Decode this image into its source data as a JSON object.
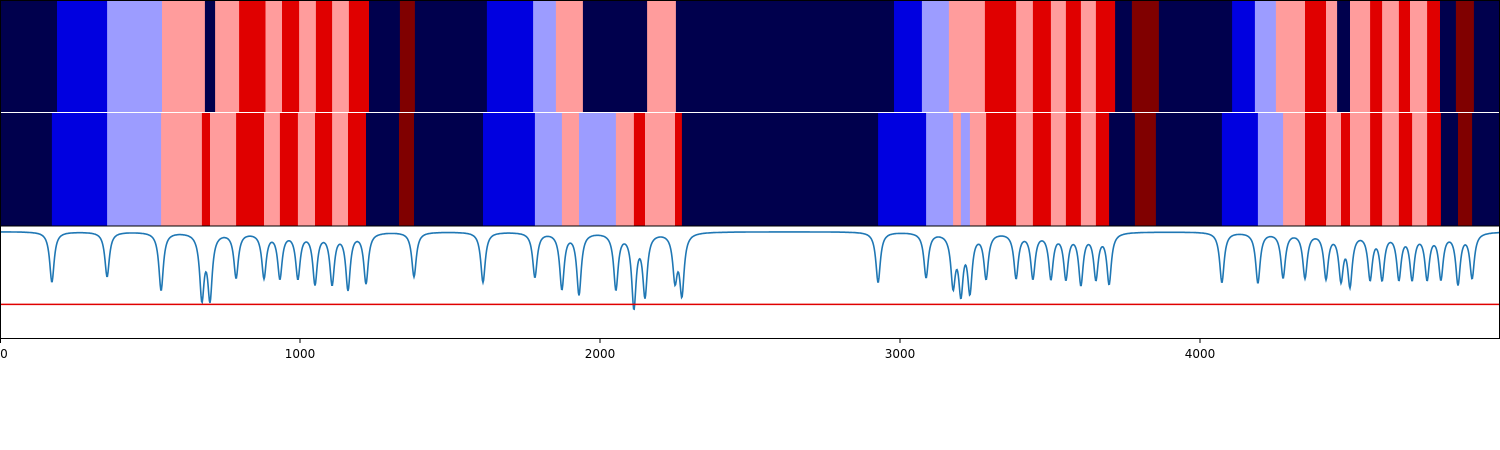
{
  "chart_data": {
    "type": "heatmap",
    "title": "",
    "xlabel": "",
    "ylabel": "",
    "xlim": [
      0,
      5000
    ],
    "xticks": [
      0,
      1000,
      2000,
      3000,
      4000
    ],
    "tick_labels": [
      "0",
      "1000",
      "2000",
      "3000",
      "4000"
    ],
    "grid": false,
    "legend": "none",
    "palette": {
      "0": "#00004d",
      "1": "#0000e0",
      "2": "#9c9cff",
      "3": "#ff9c9c",
      "4": "#e00000",
      "5": "#800000"
    },
    "rows": [
      {
        "name": "",
        "segments": [
          [
            0,
            190,
            0
          ],
          [
            190,
            357,
            1
          ],
          [
            357,
            540,
            2
          ],
          [
            540,
            683,
            3
          ],
          [
            683,
            717,
            0
          ],
          [
            717,
            797,
            3
          ],
          [
            797,
            885,
            4
          ],
          [
            885,
            940,
            3
          ],
          [
            940,
            997,
            4
          ],
          [
            997,
            1053,
            3
          ],
          [
            1053,
            1107,
            4
          ],
          [
            1107,
            1163,
            3
          ],
          [
            1163,
            1230,
            4
          ],
          [
            1230,
            1333,
            0
          ],
          [
            1333,
            1383,
            5
          ],
          [
            1383,
            1623,
            0
          ],
          [
            1623,
            1777,
            1
          ],
          [
            1777,
            1853,
            2
          ],
          [
            1853,
            1943,
            3
          ],
          [
            1943,
            2157,
            0
          ],
          [
            2157,
            2253,
            3
          ],
          [
            2253,
            2980,
            0
          ],
          [
            2980,
            3073,
            1
          ],
          [
            3073,
            3163,
            2
          ],
          [
            3163,
            3283,
            3
          ],
          [
            3283,
            3387,
            4
          ],
          [
            3387,
            3443,
            3
          ],
          [
            3443,
            3503,
            4
          ],
          [
            3503,
            3553,
            3
          ],
          [
            3553,
            3603,
            4
          ],
          [
            3603,
            3653,
            3
          ],
          [
            3653,
            3717,
            4
          ],
          [
            3717,
            3773,
            0
          ],
          [
            3773,
            3863,
            5
          ],
          [
            3863,
            4107,
            0
          ],
          [
            4107,
            4183,
            1
          ],
          [
            4183,
            4253,
            2
          ],
          [
            4253,
            4350,
            3
          ],
          [
            4350,
            4420,
            4
          ],
          [
            4420,
            4457,
            3
          ],
          [
            4457,
            4500,
            0
          ],
          [
            4500,
            4567,
            3
          ],
          [
            4567,
            4607,
            4
          ],
          [
            4607,
            4663,
            3
          ],
          [
            4663,
            4700,
            4
          ],
          [
            4700,
            4757,
            3
          ],
          [
            4757,
            4800,
            4
          ],
          [
            4800,
            4853,
            0
          ],
          [
            4853,
            4913,
            5
          ],
          [
            4913,
            5000,
            0
          ]
        ]
      },
      {
        "name": "",
        "segments": [
          [
            0,
            173,
            0
          ],
          [
            173,
            357,
            1
          ],
          [
            357,
            537,
            2
          ],
          [
            537,
            673,
            3
          ],
          [
            673,
            700,
            4
          ],
          [
            700,
            787,
            3
          ],
          [
            787,
            880,
            4
          ],
          [
            880,
            933,
            3
          ],
          [
            933,
            993,
            4
          ],
          [
            993,
            1050,
            3
          ],
          [
            1050,
            1107,
            4
          ],
          [
            1107,
            1160,
            3
          ],
          [
            1160,
            1220,
            4
          ],
          [
            1220,
            1330,
            0
          ],
          [
            1330,
            1380,
            5
          ],
          [
            1380,
            1610,
            0
          ],
          [
            1610,
            1783,
            1
          ],
          [
            1783,
            1873,
            2
          ],
          [
            1873,
            1930,
            3
          ],
          [
            1930,
            2053,
            2
          ],
          [
            2053,
            2113,
            3
          ],
          [
            2113,
            2150,
            4
          ],
          [
            2150,
            2250,
            3
          ],
          [
            2250,
            2273,
            4
          ],
          [
            2273,
            2927,
            0
          ],
          [
            2927,
            3087,
            1
          ],
          [
            3087,
            3177,
            2
          ],
          [
            3177,
            3203,
            3
          ],
          [
            3203,
            3233,
            2
          ],
          [
            3233,
            3287,
            3
          ],
          [
            3287,
            3387,
            4
          ],
          [
            3387,
            3443,
            3
          ],
          [
            3443,
            3503,
            4
          ],
          [
            3503,
            3553,
            3
          ],
          [
            3553,
            3603,
            4
          ],
          [
            3603,
            3653,
            3
          ],
          [
            3653,
            3697,
            4
          ],
          [
            3697,
            3783,
            0
          ],
          [
            3783,
            3853,
            5
          ],
          [
            3853,
            4073,
            0
          ],
          [
            4073,
            4193,
            1
          ],
          [
            4193,
            4277,
            2
          ],
          [
            4277,
            4350,
            3
          ],
          [
            4350,
            4420,
            4
          ],
          [
            4420,
            4470,
            3
          ],
          [
            4470,
            4500,
            4
          ],
          [
            4500,
            4567,
            3
          ],
          [
            4567,
            4607,
            4
          ],
          [
            4607,
            4663,
            3
          ],
          [
            4663,
            4707,
            4
          ],
          [
            4707,
            4757,
            3
          ],
          [
            4757,
            4803,
            4
          ],
          [
            4803,
            4860,
            0
          ],
          [
            4860,
            4907,
            5
          ],
          [
            4907,
            5000,
            0
          ]
        ]
      }
    ],
    "line_series": {
      "color": "#1f77b4",
      "threshold_color": "#e00000",
      "baseline": 0.95,
      "threshold": 0.3,
      "ylim": [
        0,
        1
      ],
      "dips": [
        [
          173,
          0.5
        ],
        [
          357,
          0.55
        ],
        [
          537,
          0.43
        ],
        [
          673,
          0.38
        ],
        [
          700,
          0.38
        ],
        [
          787,
          0.55
        ],
        [
          880,
          0.55
        ],
        [
          933,
          0.55
        ],
        [
          993,
          0.55
        ],
        [
          1050,
          0.5
        ],
        [
          1107,
          0.5
        ],
        [
          1160,
          0.45
        ],
        [
          1220,
          0.5
        ],
        [
          1380,
          0.55
        ],
        [
          1610,
          0.5
        ],
        [
          1783,
          0.55
        ],
        [
          1873,
          0.45
        ],
        [
          1930,
          0.4
        ],
        [
          2053,
          0.45
        ],
        [
          2113,
          0.3
        ],
        [
          2150,
          0.4
        ],
        [
          2250,
          0.55
        ],
        [
          2273,
          0.42
        ],
        [
          2927,
          0.5
        ],
        [
          3087,
          0.55
        ],
        [
          3177,
          0.5
        ],
        [
          3203,
          0.45
        ],
        [
          3233,
          0.45
        ],
        [
          3287,
          0.55
        ],
        [
          3387,
          0.55
        ],
        [
          3443,
          0.55
        ],
        [
          3503,
          0.55
        ],
        [
          3553,
          0.55
        ],
        [
          3603,
          0.5
        ],
        [
          3653,
          0.55
        ],
        [
          3697,
          0.5
        ],
        [
          4073,
          0.5
        ],
        [
          4193,
          0.5
        ],
        [
          4277,
          0.55
        ],
        [
          4350,
          0.55
        ],
        [
          4420,
          0.55
        ],
        [
          4470,
          0.55
        ],
        [
          4500,
          0.5
        ],
        [
          4567,
          0.55
        ],
        [
          4607,
          0.55
        ],
        [
          4663,
          0.55
        ],
        [
          4707,
          0.55
        ],
        [
          4757,
          0.55
        ],
        [
          4803,
          0.55
        ],
        [
          4860,
          0.5
        ],
        [
          4907,
          0.55
        ]
      ]
    }
  }
}
